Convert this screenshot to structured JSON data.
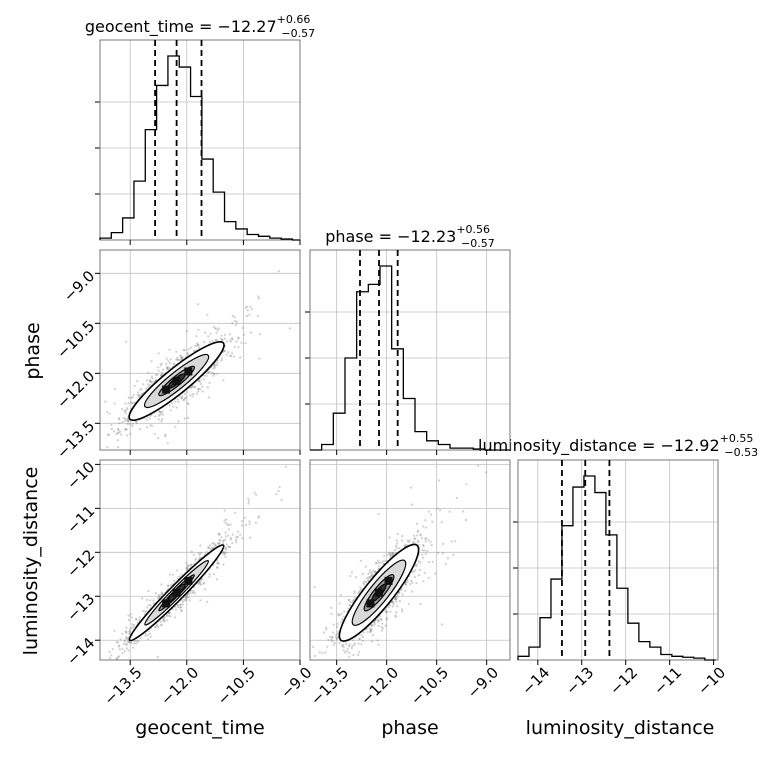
{
  "chart_data": {
    "type": "corner",
    "parameters": [
      "geocent_time",
      "phase",
      "luminosity_distance"
    ],
    "axis_labels": [
      "geocent_time",
      "phase",
      "luminosity_distance"
    ],
    "tick_labels": {
      "geocent_time": [
        "−13.5",
        "−12.0",
        "−10.5",
        "−9.0"
      ],
      "phase": [
        "−13.5",
        "−12.0",
        "−10.5",
        "−9.0"
      ],
      "luminosity_distance": [
        "−14",
        "−13",
        "−12",
        "−11",
        "−10"
      ]
    },
    "ranges": {
      "geocent_time": [
        -14.3,
        -9.0
      ],
      "phase": [
        -14.3,
        -8.3
      ],
      "luminosity_distance": [
        -14.45,
        -9.9
      ]
    },
    "summaries": [
      {
        "param": "geocent_time",
        "label": "geocent_time",
        "median": "−12.27",
        "plus": "+0.66",
        "minus": "−0.57",
        "quantiles": [
          -12.84,
          -12.27,
          -11.61
        ]
      },
      {
        "param": "phase",
        "label": "phase",
        "median": "−12.23",
        "plus": "+0.56",
        "minus": "−0.57",
        "quantiles": [
          -12.8,
          -12.23,
          -11.67
        ]
      },
      {
        "param": "luminosity_distance",
        "label": "luminosity_distance",
        "median": "−12.92",
        "plus": "+0.55",
        "minus": "−0.53",
        "quantiles": [
          -13.45,
          -12.92,
          -12.37
        ]
      }
    ],
    "histograms": {
      "geocent_time": {
        "edges": [
          -14.3,
          -14.0,
          -13.7,
          -13.4,
          -13.1,
          -12.8,
          -12.5,
          -12.2,
          -11.9,
          -11.6,
          -11.3,
          -11.0,
          -10.7,
          -10.4,
          -10.1,
          -9.8,
          -9.5,
          -9.2,
          -9.0
        ],
        "counts": [
          0.01,
          0.04,
          0.12,
          0.32,
          0.6,
          0.84,
          1.0,
          0.94,
          0.78,
          0.44,
          0.26,
          0.1,
          0.06,
          0.03,
          0.02,
          0.01,
          0.005,
          0.0
        ]
      },
      "phase": {
        "edges": [
          -14.3,
          -13.95,
          -13.6,
          -13.25,
          -12.9,
          -12.55,
          -12.2,
          -11.85,
          -11.5,
          -11.15,
          -10.8,
          -10.45,
          -10.1,
          -9.75,
          -9.4,
          -9.05,
          -8.7,
          -8.3
        ],
        "counts": [
          0.0,
          0.03,
          0.2,
          0.5,
          0.86,
          0.9,
          1.0,
          0.55,
          0.28,
          0.1,
          0.05,
          0.03,
          0.01,
          0.01,
          0.005,
          0.0,
          0.0
        ]
      },
      "luminosity_distance": {
        "edges": [
          -14.45,
          -14.2,
          -13.95,
          -13.7,
          -13.45,
          -13.2,
          -12.95,
          -12.7,
          -12.45,
          -12.2,
          -11.95,
          -11.7,
          -11.45,
          -11.2,
          -10.95,
          -10.7,
          -10.45,
          -10.2,
          -9.95
        ],
        "counts": [
          0.02,
          0.07,
          0.23,
          0.44,
          0.73,
          0.94,
          1.0,
          0.91,
          0.68,
          0.39,
          0.2,
          0.1,
          0.07,
          0.03,
          0.02,
          0.015,
          0.01,
          0.0
        ]
      }
    },
    "correlations": {
      "phase_vs_geocent_time": {
        "rho": 0.86,
        "mean_x": -12.27,
        "mean_y": -12.23,
        "sd_x": 0.62,
        "sd_y": 0.57
      },
      "luminosity_distance_vs_geocent_time": {
        "rho": 0.96,
        "mean_x": -12.27,
        "mean_y": -12.92,
        "sd_x": 0.62,
        "sd_y": 0.54
      },
      "luminosity_distance_vs_phase": {
        "rho": 0.82,
        "mean_x": -12.23,
        "mean_y": -12.92,
        "sd_x": 0.57,
        "sd_y": 0.54
      }
    },
    "grid": true,
    "legend": "none",
    "colors": {
      "line": "#000000",
      "points": "#777777",
      "grid": "#c0c0c0",
      "axes": "#777777"
    }
  }
}
